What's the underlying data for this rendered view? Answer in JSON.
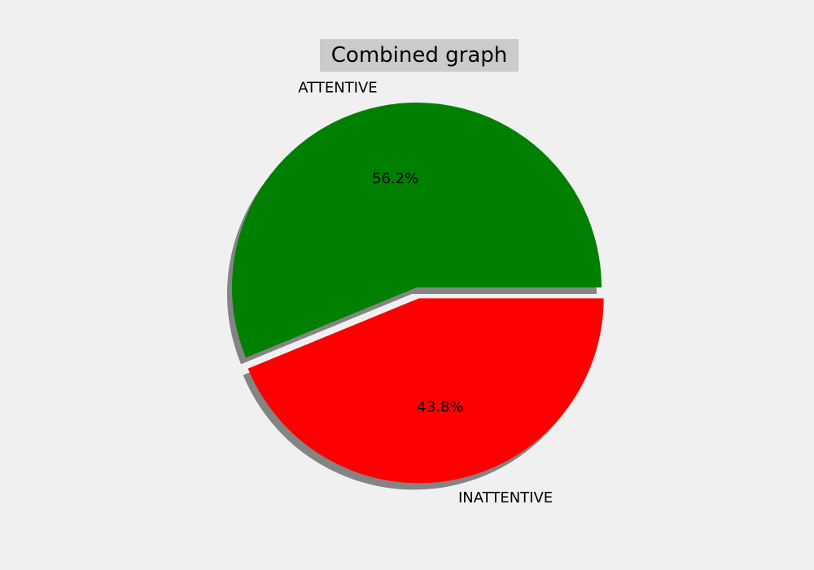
{
  "chart_data": {
    "type": "pie",
    "title": "Combined graph",
    "slices": [
      {
        "label": "ATTENTIVE",
        "value": 56.2,
        "pct_label": "56.2%",
        "color": "#008000",
        "explode": 0
      },
      {
        "label": "INATTENTIVE",
        "value": 43.8,
        "pct_label": "43.8%",
        "color": "#ff0000",
        "explode": 0.06
      }
    ],
    "start_angle_deg": 0,
    "direction": "counterclockwise",
    "shadow": true,
    "background_color": "#f0f0f0",
    "title_background_color": "#cbcbcb"
  }
}
